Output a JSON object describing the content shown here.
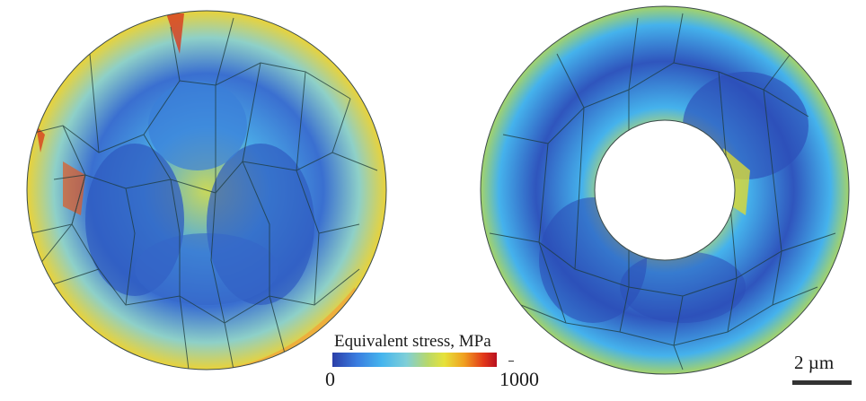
{
  "figure": {
    "colorbar": {
      "title": "Equivalent  stress, MPa",
      "min_label": "0",
      "max_label": "1000",
      "min": 0,
      "max": 1000,
      "stops": [
        "#2b3ea8",
        "#3a7de0",
        "#45b5ee",
        "#7fcfd8",
        "#b8d86a",
        "#e6e23a",
        "#f0a020",
        "#e2381a",
        "#b81020"
      ]
    },
    "scale_bar": {
      "label": "2 µm"
    },
    "panels": [
      "solid-disk",
      "annular-disk"
    ]
  }
}
